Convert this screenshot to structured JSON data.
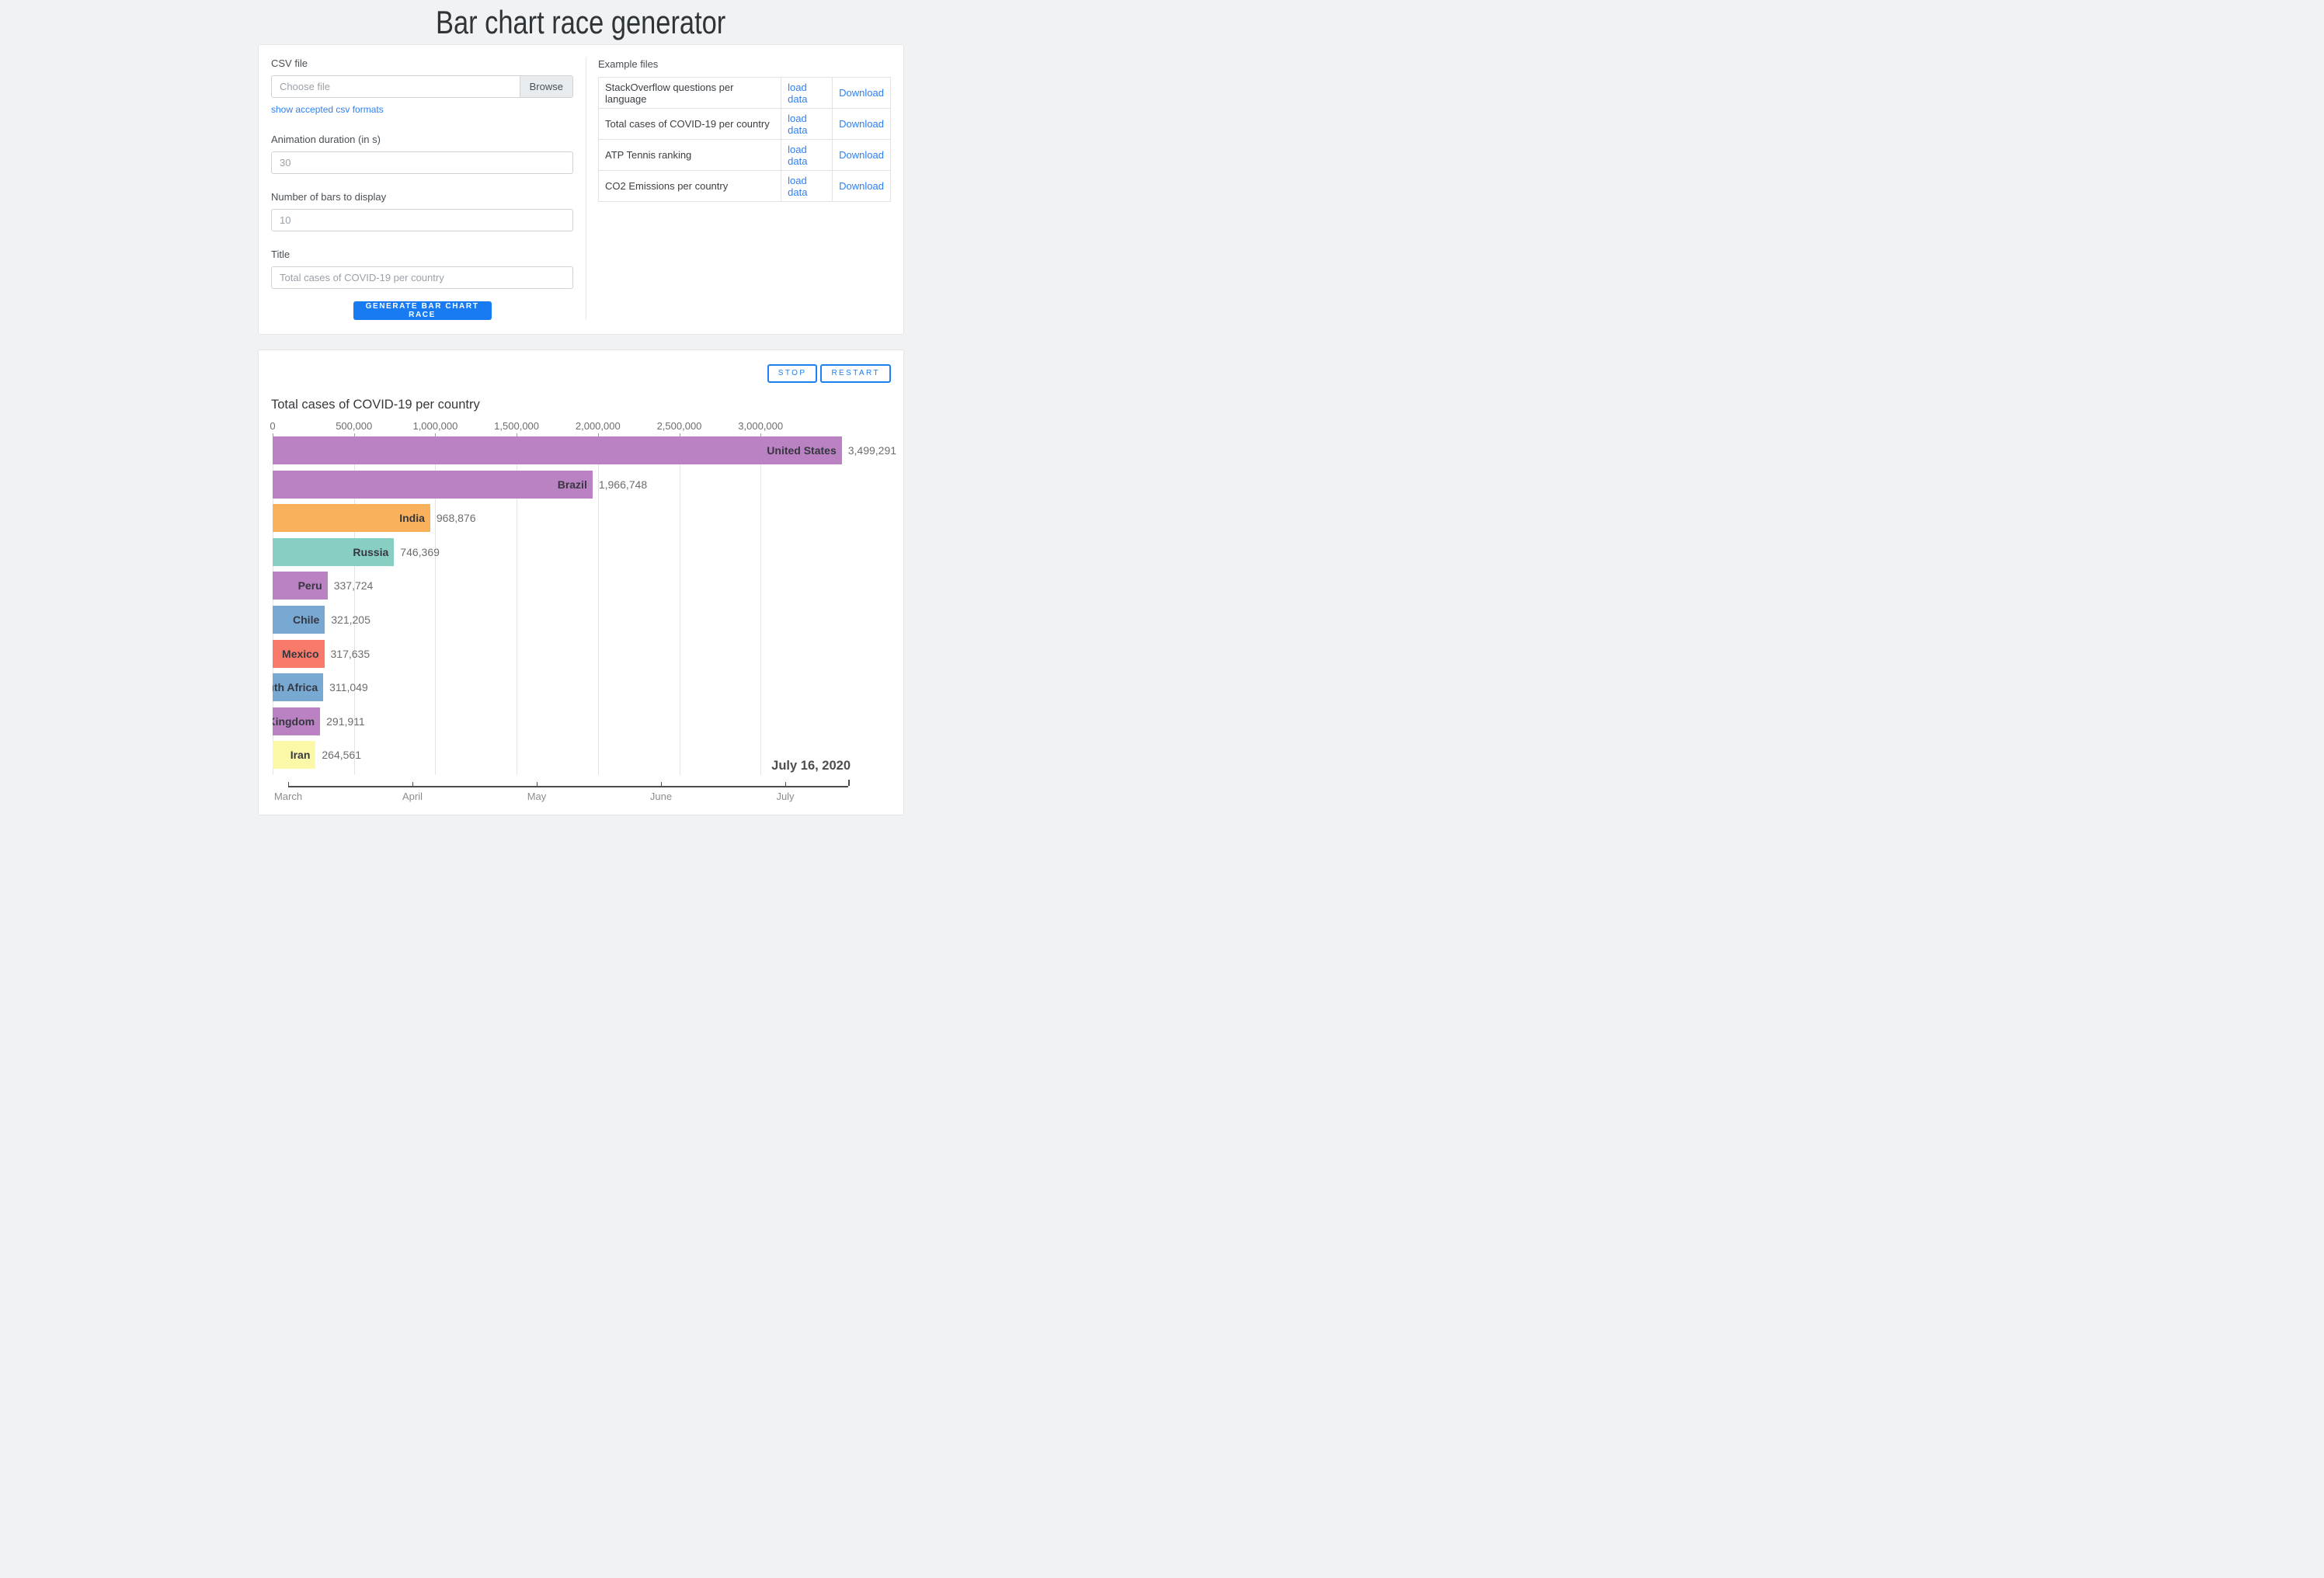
{
  "page": {
    "title": "Bar chart race generator"
  },
  "form": {
    "csv_label": "CSV file",
    "file_placeholder": "Choose file",
    "browse_label": "Browse",
    "formats_link": "show accepted csv formats",
    "duration_label": "Animation duration (in s)",
    "duration_placeholder": "30",
    "bars_label": "Number of bars to display",
    "bars_placeholder": "10",
    "title_label": "Title",
    "title_placeholder": "Total cases of COVID-19 per country",
    "generate_label": "GENERATE BAR CHART RACE"
  },
  "examples": {
    "heading": "Example files",
    "load_label": "load data",
    "download_label": "Download",
    "files": [
      "StackOverflow questions per language",
      "Total cases of COVID-19 per country",
      "ATP Tennis ranking",
      "CO2 Emissions per country"
    ]
  },
  "player": {
    "stop_label": "STOP",
    "restart_label": "RESTART"
  },
  "chart_data": {
    "type": "bar",
    "title": "Total cases of COVID-19 per country",
    "date_label": "July 16, 2020",
    "x_ticks": [
      "0",
      "500,000",
      "1,000,000",
      "1,500,000",
      "2,000,000",
      "2,500,000",
      "3,000,000"
    ],
    "x_tick_values": [
      0,
      500000,
      1000000,
      1500000,
      2000000,
      2500000,
      3000000
    ],
    "categories": [
      "United States",
      "Brazil",
      "India",
      "Russia",
      "Peru",
      "Chile",
      "Mexico",
      "South Africa",
      "United Kingdom",
      "Iran"
    ],
    "values": [
      3499291,
      1966748,
      968876,
      746369,
      337724,
      321205,
      317635,
      311049,
      291911,
      264561
    ],
    "value_labels": [
      "3,499,291",
      "1,966,748",
      "968,876",
      "746,369",
      "337,724",
      "321,205",
      "317,635",
      "311,049",
      "291,911",
      "264,561"
    ],
    "bar_colors": [
      "#ba81c3",
      "#ba81c3",
      "#f9b25b",
      "#86cfc2",
      "#ba81c3",
      "#78a9d3",
      "#f87a6b",
      "#78a9d3",
      "#ba81c3",
      "#fbf8a8"
    ],
    "grid": true,
    "legend": false,
    "timeline_months": [
      "March",
      "April",
      "May",
      "June",
      "July"
    ]
  },
  "colors": {
    "primary_button": "#187bf2",
    "outline_button": "#1d7ff2",
    "link": "#2e80f5",
    "page_background": "#f0f2f3",
    "gridline": "#e2e4e5",
    "timeline_line": "#4d4d4d"
  }
}
